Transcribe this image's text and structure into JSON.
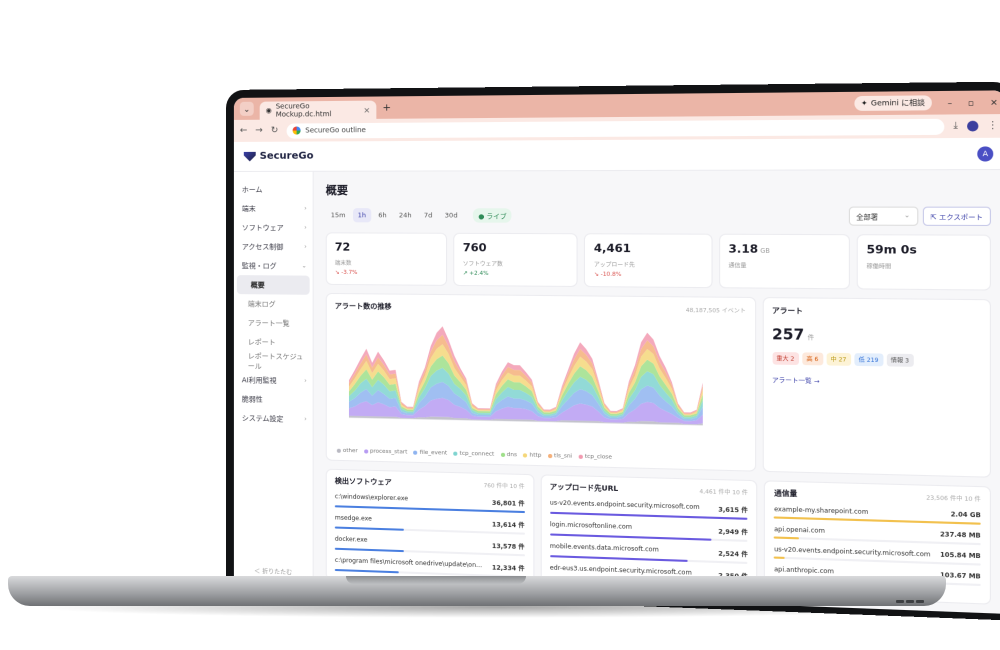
{
  "browser": {
    "tab_title": "SecureGo Mockup.dc.html",
    "url": "SecureGo outline",
    "gemini_label": "Gemini に相談"
  },
  "app": {
    "brand": "SecureGo",
    "avatar_initial": "A"
  },
  "sidebar": {
    "items": [
      {
        "label": "ホーム",
        "chevron": false
      },
      {
        "label": "端末",
        "chevron": true
      },
      {
        "label": "ソフトウェア",
        "chevron": true
      },
      {
        "label": "アクセス制御",
        "chevron": true
      },
      {
        "label": "監視・ログ",
        "chevron": true,
        "expanded": true
      }
    ],
    "sub_items": [
      {
        "label": "概要",
        "active": true
      },
      {
        "label": "端末ログ"
      },
      {
        "label": "アラート一覧"
      },
      {
        "label": "レポート"
      },
      {
        "label": "レポートスケジュール"
      }
    ],
    "items_after": [
      {
        "label": "AI利用監視",
        "chevron": true
      },
      {
        "label": "脆弱性",
        "chevron": false
      },
      {
        "label": "システム設定",
        "chevron": true
      }
    ],
    "collapse_label": "＜ 折りたたむ"
  },
  "page": {
    "title": "概要",
    "ranges": [
      "15m",
      "1h",
      "6h",
      "24h",
      "7d",
      "30d"
    ],
    "active_range": "1h",
    "live_label": "● ライブ",
    "filter_value": "全部署",
    "export_label": "エクスポート"
  },
  "kpis": [
    {
      "value": "72",
      "unit": "",
      "label": "端末数",
      "delta": "↘ -3.7%",
      "dir": "down"
    },
    {
      "value": "760",
      "unit": "",
      "label": "ソフトウェア数",
      "delta": "↗ +2.4%",
      "dir": "up"
    },
    {
      "value": "4,461",
      "unit": "",
      "label": "アップロード先",
      "delta": "↘ -10.8%",
      "dir": "down"
    },
    {
      "value": "3.18",
      "unit": "GB",
      "label": "通信量",
      "delta": "",
      "dir": ""
    },
    {
      "value": "59m 0s",
      "unit": "",
      "label": "稼働時間",
      "delta": "",
      "dir": ""
    }
  ],
  "alert_trend": {
    "title": "アラート数の推移",
    "subtitle": "48,187,505 イベント",
    "legend": [
      {
        "name": "other",
        "color": "#b9b9c2"
      },
      {
        "name": "process_start",
        "color": "#b79cf2"
      },
      {
        "name": "file_event",
        "color": "#8fb4f0"
      },
      {
        "name": "tcp_connect",
        "color": "#7fd4d0"
      },
      {
        "name": "dns",
        "color": "#9fdf8a"
      },
      {
        "name": "http",
        "color": "#f5d77a"
      },
      {
        "name": "tls_sni",
        "color": "#f5b07a"
      },
      {
        "name": "tcp_close",
        "color": "#f29ab0"
      }
    ]
  },
  "chart_data": {
    "type": "area",
    "title": "アラート数の推移",
    "stacked": true,
    "x": [
      0,
      1,
      2,
      3,
      4,
      5,
      6,
      7,
      8,
      9,
      10,
      11,
      12,
      13,
      14,
      15,
      16,
      17,
      18,
      19,
      20,
      21,
      22,
      23,
      24,
      25,
      26,
      27,
      28,
      29,
      30,
      31,
      32,
      33,
      34,
      35,
      36,
      37,
      38,
      39,
      40,
      41,
      42,
      43,
      44,
      45,
      46,
      47,
      48,
      49,
      50,
      51,
      52,
      53,
      54,
      55,
      56,
      57,
      58,
      59
    ],
    "series": [
      {
        "name": "other",
        "values": [
          2,
          2,
          2,
          2,
          2,
          2,
          2,
          2,
          2,
          1,
          1,
          1,
          2,
          2,
          3,
          3,
          3,
          3,
          2,
          2,
          2,
          1,
          1,
          1,
          1,
          2,
          2,
          2,
          2,
          2,
          2,
          2,
          1,
          1,
          1,
          1,
          2,
          2,
          2,
          2,
          2,
          2,
          2,
          1,
          1,
          1,
          1,
          2,
          2,
          3,
          3,
          3,
          2,
          2,
          2,
          2,
          1,
          1,
          1,
          2
        ]
      },
      {
        "name": "process_start",
        "values": [
          8,
          10,
          14,
          16,
          12,
          15,
          13,
          10,
          11,
          4,
          3,
          3,
          8,
          12,
          17,
          19,
          20,
          18,
          14,
          12,
          9,
          4,
          3,
          3,
          3,
          8,
          11,
          13,
          12,
          12,
          11,
          9,
          5,
          3,
          3,
          4,
          8,
          12,
          16,
          18,
          17,
          15,
          10,
          5,
          3,
          3,
          4,
          9,
          13,
          18,
          20,
          19,
          15,
          12,
          9,
          5,
          3,
          3,
          4,
          9
        ]
      },
      {
        "name": "file_event",
        "values": [
          7,
          9,
          11,
          13,
          10,
          13,
          11,
          9,
          9,
          3,
          2,
          2,
          7,
          10,
          14,
          16,
          17,
          15,
          12,
          10,
          8,
          3,
          2,
          2,
          2,
          7,
          9,
          11,
          10,
          10,
          9,
          8,
          4,
          2,
          2,
          3,
          7,
          10,
          13,
          15,
          14,
          12,
          8,
          4,
          2,
          2,
          3,
          8,
          11,
          15,
          17,
          16,
          13,
          10,
          8,
          4,
          2,
          2,
          3,
          8
        ]
      },
      {
        "name": "tcp_connect",
        "values": [
          6,
          8,
          10,
          11,
          9,
          11,
          10,
          8,
          8,
          3,
          2,
          2,
          6,
          9,
          12,
          14,
          15,
          13,
          10,
          9,
          7,
          3,
          2,
          2,
          2,
          6,
          8,
          10,
          9,
          9,
          8,
          7,
          3,
          2,
          2,
          2,
          6,
          9,
          11,
          13,
          12,
          10,
          7,
          3,
          2,
          2,
          2,
          7,
          9,
          13,
          15,
          14,
          11,
          9,
          7,
          3,
          2,
          2,
          2,
          7
        ]
      },
      {
        "name": "dns",
        "values": [
          5,
          7,
          8,
          10,
          8,
          9,
          8,
          7,
          7,
          2,
          2,
          2,
          5,
          7,
          10,
          12,
          13,
          11,
          9,
          7,
          6,
          2,
          2,
          2,
          2,
          5,
          7,
          8,
          8,
          8,
          7,
          6,
          3,
          2,
          2,
          2,
          5,
          7,
          9,
          11,
          10,
          9,
          6,
          3,
          2,
          2,
          2,
          6,
          8,
          11,
          12,
          11,
          9,
          8,
          6,
          3,
          2,
          2,
          2,
          6
        ]
      },
      {
        "name": "http",
        "values": [
          5,
          6,
          7,
          9,
          7,
          8,
          7,
          6,
          6,
          2,
          1,
          1,
          5,
          6,
          9,
          11,
          12,
          10,
          8,
          6,
          5,
          2,
          1,
          1,
          1,
          4,
          6,
          7,
          7,
          7,
          6,
          5,
          2,
          1,
          1,
          2,
          4,
          6,
          8,
          10,
          9,
          8,
          5,
          2,
          1,
          1,
          2,
          5,
          7,
          10,
          11,
          10,
          8,
          7,
          5,
          2,
          1,
          1,
          2,
          5
        ]
      },
      {
        "name": "tls_sni",
        "values": [
          4,
          5,
          6,
          7,
          6,
          7,
          6,
          5,
          5,
          2,
          1,
          1,
          4,
          5,
          7,
          9,
          10,
          8,
          7,
          5,
          4,
          2,
          1,
          1,
          1,
          4,
          5,
          6,
          6,
          6,
          5,
          4,
          2,
          1,
          1,
          1,
          3,
          5,
          7,
          8,
          7,
          6,
          4,
          2,
          1,
          1,
          1,
          4,
          6,
          8,
          9,
          8,
          7,
          6,
          4,
          2,
          1,
          1,
          1,
          4
        ]
      },
      {
        "name": "tcp_close",
        "values": [
          3,
          4,
          5,
          6,
          5,
          6,
          5,
          4,
          4,
          1,
          1,
          1,
          3,
          4,
          6,
          8,
          9,
          7,
          6,
          4,
          3,
          1,
          1,
          1,
          1,
          3,
          4,
          5,
          5,
          5,
          4,
          3,
          1,
          1,
          1,
          1,
          3,
          4,
          6,
          7,
          6,
          5,
          3,
          1,
          1,
          1,
          1,
          3,
          5,
          7,
          8,
          7,
          6,
          5,
          3,
          1,
          1,
          1,
          1,
          3
        ]
      }
    ]
  },
  "alerts": {
    "title": "アラート",
    "count": "257",
    "count_unit": "件",
    "severities": [
      {
        "label": "重大 2",
        "bg": "#fde3e3",
        "fg": "#c0392b"
      },
      {
        "label": "高 6",
        "bg": "#fde9dc",
        "fg": "#d35400"
      },
      {
        "label": "中 27",
        "bg": "#fdf3d6",
        "fg": "#b7950b"
      },
      {
        "label": "低 219",
        "bg": "#e3eefc",
        "fg": "#2e6fd8"
      },
      {
        "label": "情報 3",
        "bg": "#ececf0",
        "fg": "#555"
      }
    ],
    "link": "アラート一覧 →"
  },
  "software": {
    "title": "検出ソフトウェア",
    "subtitle": "760 件中 10 件",
    "rows": [
      {
        "name": "c:\\windows\\explorer.exe",
        "value": "36,801 件",
        "pct": 1.0
      },
      {
        "name": "msedge.exe",
        "value": "13,614 件",
        "pct": 0.37
      },
      {
        "name": "docker.exe",
        "value": "13,578 件",
        "pct": 0.37
      },
      {
        "name": "c:\\program files\\microsoft onedrive\\update\\on…",
        "value": "12,334 件",
        "pct": 0.34
      }
    ]
  },
  "uploads": {
    "title": "アップロード先URL",
    "subtitle": "4,461 件中 10 件",
    "rows": [
      {
        "name": "us-v20.events.endpoint.security.microsoft.com",
        "value": "3,615 件",
        "pct": 1.0
      },
      {
        "name": "login.microsoftonline.com",
        "value": "2,949 件",
        "pct": 0.82
      },
      {
        "name": "mobile.events.data.microsoft.com",
        "value": "2,524 件",
        "pct": 0.7
      },
      {
        "name": "edr-eus3.us.endpoint.security.microsoft.com",
        "value": "2,350 件",
        "pct": 0.65
      }
    ]
  },
  "traffic": {
    "title": "通信量",
    "subtitle": "23,506 件中 10 件",
    "rows": [
      {
        "name": "example-my.sharepoint.com",
        "value": "2.04 GB",
        "pct": 1.0
      },
      {
        "name": "api.openai.com",
        "value": "237.48 MB",
        "pct": 0.12
      },
      {
        "name": "us-v20.events.endpoint.security.microsoft.com",
        "value": "105.84 MB",
        "pct": 0.05
      },
      {
        "name": "api.anthropic.com",
        "value": "103.67 MB",
        "pct": 0.05
      }
    ]
  },
  "colors": {
    "accent": "#3a3fa8",
    "software_bar": "#4a7fe0",
    "upload_bar": "#6a5ae0",
    "traffic_bar": "#f2c14e"
  }
}
